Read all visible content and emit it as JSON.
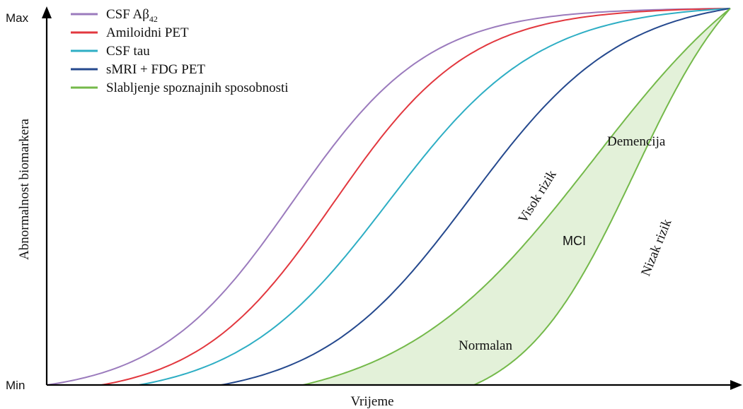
{
  "chart_data": {
    "type": "line",
    "title": "",
    "xlabel": "Vrijeme",
    "ylabel": "Abnormalnost biomarkera",
    "y_ticks": [
      "Min",
      "Max"
    ],
    "ylim": [
      0,
      1
    ],
    "xlim": [
      0,
      1
    ],
    "legend_position": "top-left",
    "series": [
      {
        "name": "CSF Aβ42",
        "label_main": "CSF Aβ",
        "label_sub": "42",
        "color": "#9b7bbd",
        "x_start": 0.0,
        "x_mid": 0.36,
        "steepness": 10
      },
      {
        "name": "Amiloidni PET",
        "label_main": "Amiloidni PET",
        "color": "#e2383f",
        "x_start": 0.08,
        "x_mid": 0.42,
        "steepness": 10
      },
      {
        "name": "CSF tau",
        "label_main": "CSF tau",
        "color": "#2eaec4",
        "x_start": 0.135,
        "x_mid": 0.5,
        "steepness": 9
      },
      {
        "name": "sMRI + FDG PET",
        "label_main": "sMRI + FDG PET",
        "color": "#25498e",
        "x_start": 0.255,
        "x_mid": 0.62,
        "steepness": 9
      },
      {
        "name": "Slabljenje spoznajnih sposobnosti",
        "label_main": "Slabljenje spoznajnih sposobnosti",
        "color": "#74b94a",
        "x_start": 0.375,
        "x_mid": 0.8,
        "steepness": 7
      }
    ],
    "cognitive_band": {
      "color": "#74b94a",
      "fill": "#e3f1d9",
      "upper_curve": "Visok rizik",
      "lower_curve": "Nizak rizik",
      "low_risk_x_start": 0.625,
      "low_risk_x_mid": 0.86,
      "low_risk_steepness": 12
    },
    "annotations": {
      "normal": "Normalan",
      "mci": "MCI",
      "dementia": "Demencija",
      "high_risk": "Visok rizik",
      "low_risk": "Nizak rizik"
    }
  }
}
